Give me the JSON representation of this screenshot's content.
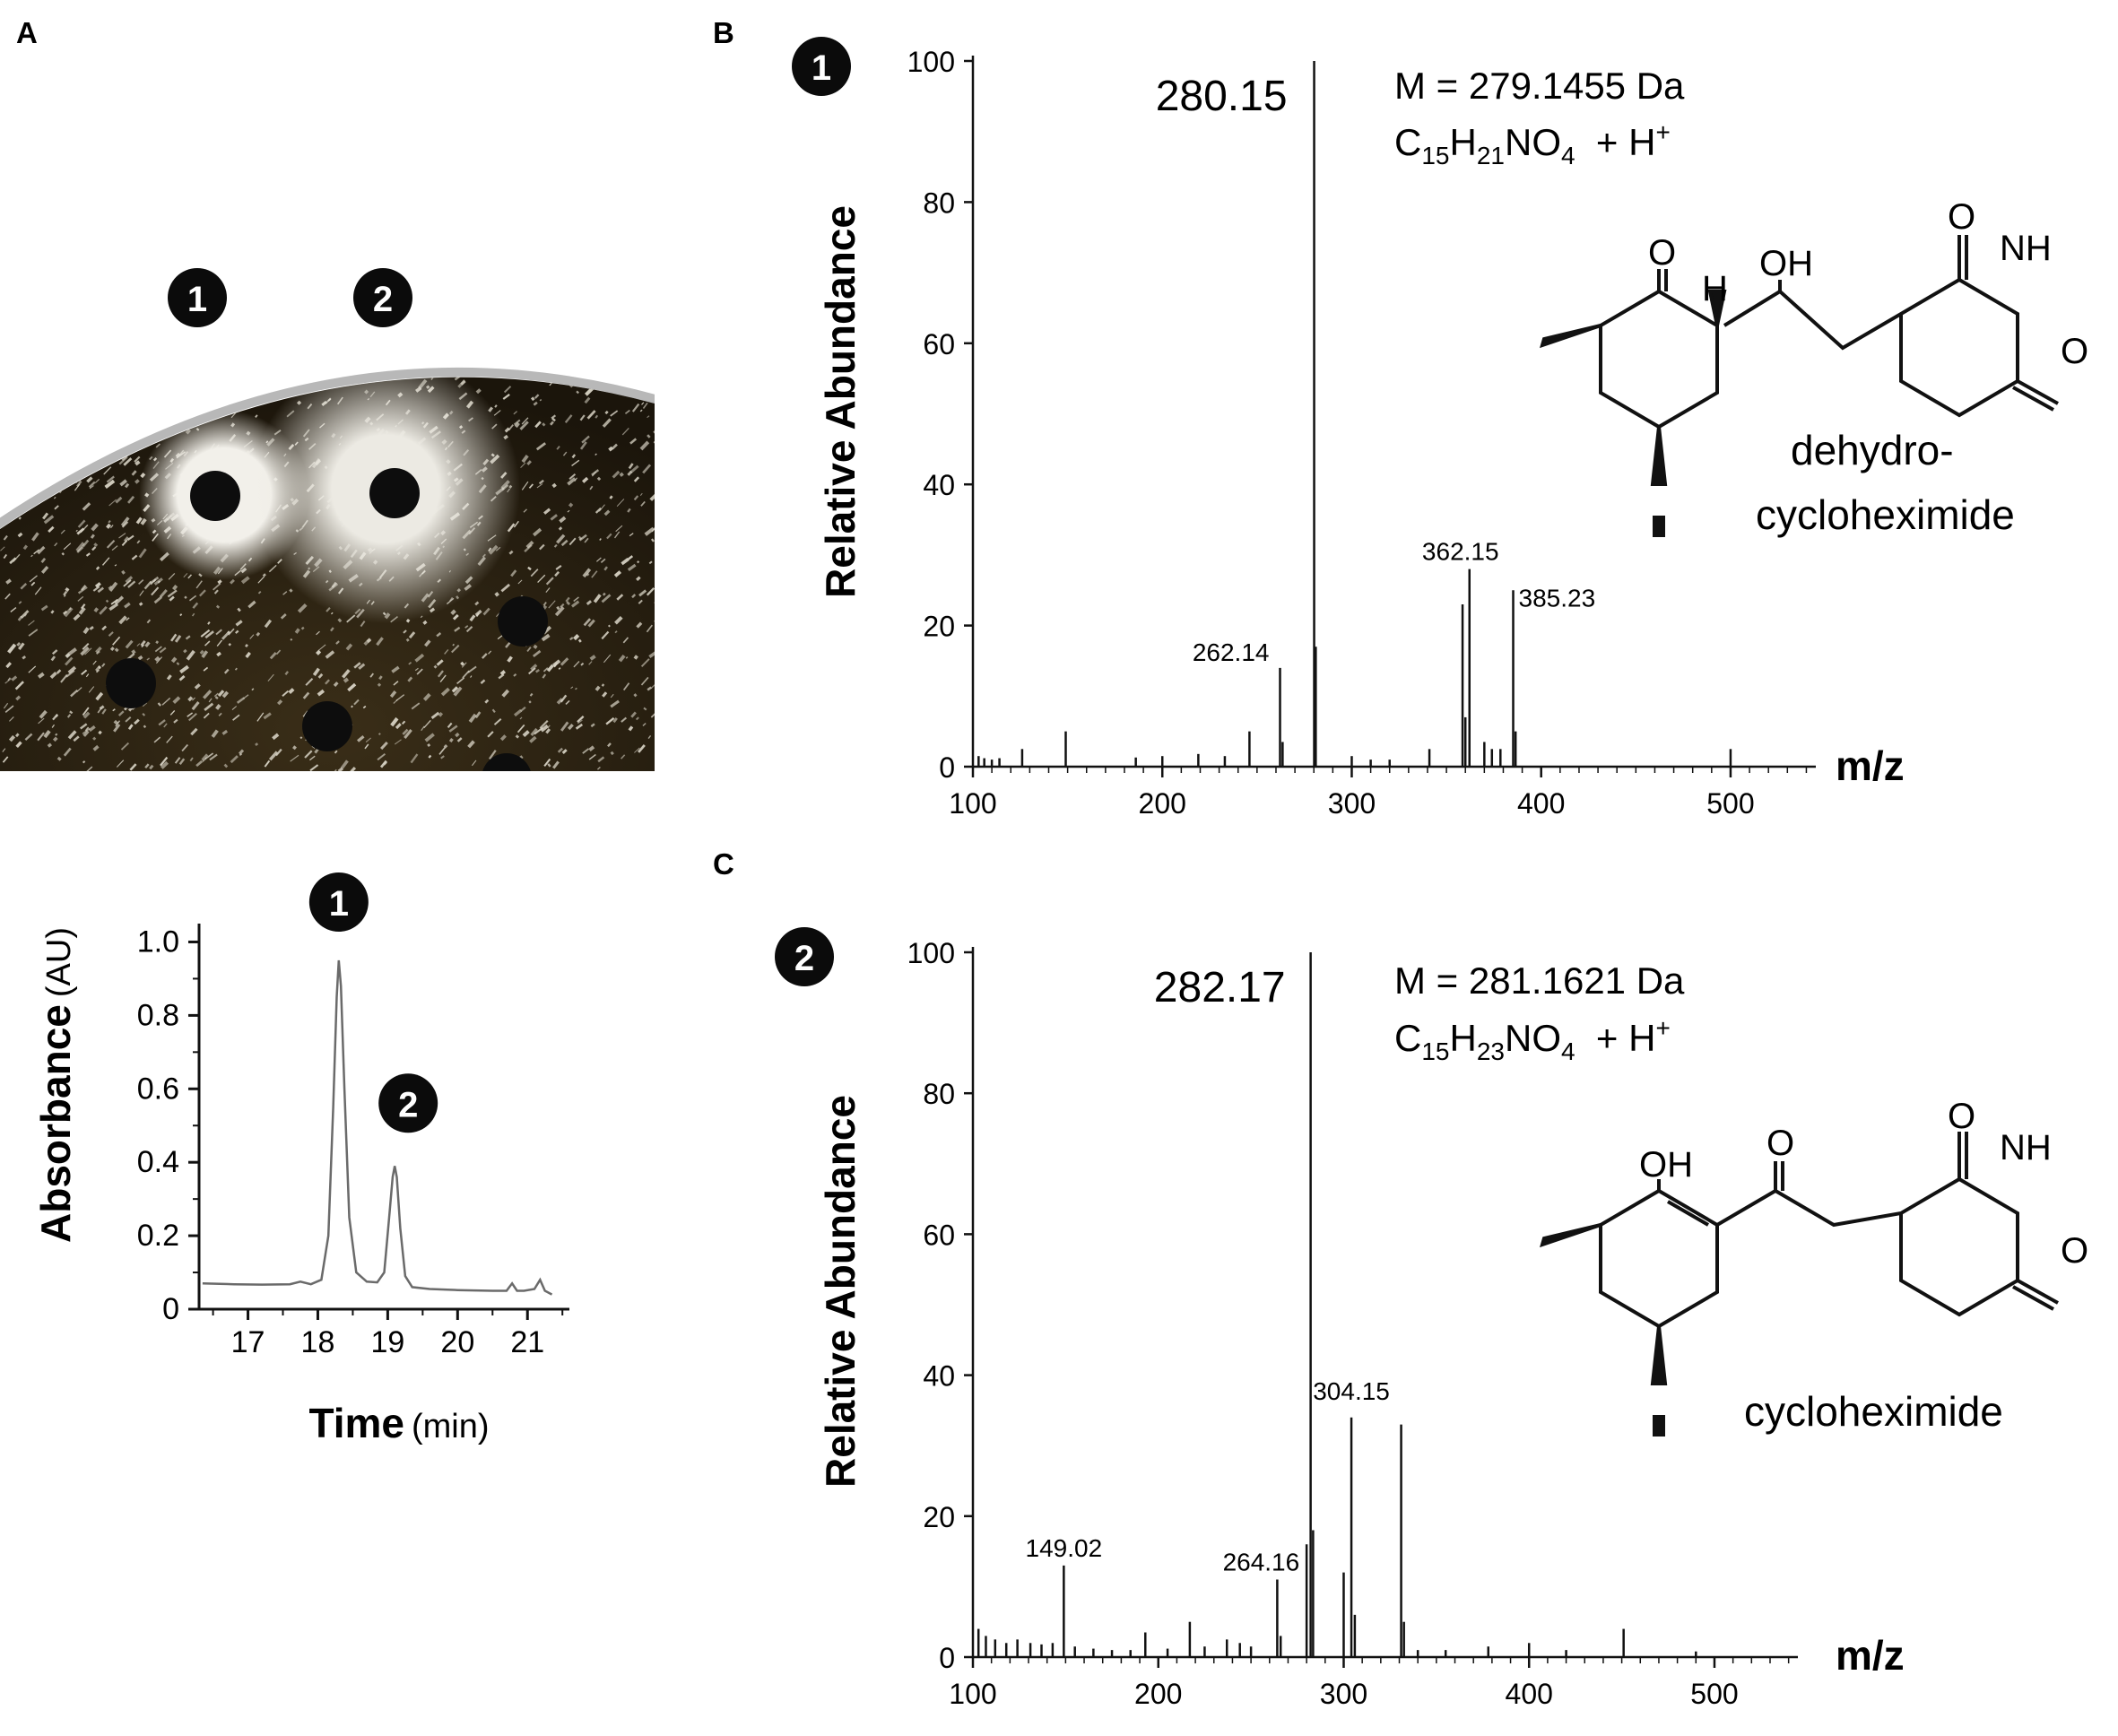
{
  "panels": {
    "a": "A",
    "b": "B",
    "c": "C"
  },
  "plate": {
    "badge_1": "1",
    "badge_2": "2"
  },
  "chromatogram": {
    "badge_1": "1",
    "badge_2": "2",
    "xlabel": "Time",
    "xunit": "(min)",
    "ylabel": "Absorbance",
    "yunit": "(AU)"
  },
  "spectrum_b": {
    "badge": "1",
    "ylabel": "Relative Abundance",
    "xlabel": "m/z",
    "mass_line": "M = 279.1455 Da",
    "formula_parts": [
      "C",
      "15",
      "H",
      "21",
      "NO",
      "4",
      "  + H",
      "+"
    ],
    "compound_line1": "dehydro-",
    "compound_line2": "cycloheximide",
    "atoms": {
      "o_ring": "O",
      "h": "H",
      "oh": "OH",
      "o_top": "O",
      "nh": "NH",
      "o_right": "O"
    }
  },
  "spectrum_c": {
    "badge": "2",
    "ylabel": "Relative Abundance",
    "xlabel": "m/z",
    "mass_line": "M = 281.1621 Da",
    "formula_parts": [
      "C",
      "15",
      "H",
      "23",
      "NO",
      "4",
      "  + H",
      "+"
    ],
    "compound": "cycloheximide",
    "atoms": {
      "oh": "OH",
      "o_ketone": "O",
      "o_top": "O",
      "nh": "NH",
      "o_right": "O"
    }
  },
  "chart_data": [
    {
      "type": "line",
      "xlabel": "Time (min)",
      "ylabel": "Absorbance (AU)",
      "xlim": [
        16.3,
        21.6
      ],
      "ylim": [
        0,
        1.05
      ],
      "xticks": [
        "17",
        "18",
        "19",
        "20",
        "21"
      ],
      "yticks": [
        "0",
        "0.2",
        "0.4",
        "0.6",
        "0.8",
        "1.0"
      ],
      "series": [
        {
          "x": [
            16.35,
            16.8,
            17.2,
            17.6,
            17.75,
            17.9,
            18.05,
            18.15,
            18.22,
            18.27,
            18.3,
            18.33,
            18.38,
            18.45,
            18.55,
            18.7,
            18.85,
            18.95,
            19.02,
            19.07,
            19.1,
            19.13,
            19.18,
            19.25,
            19.35,
            19.6,
            20.0,
            20.5,
            20.7,
            20.78,
            20.85,
            20.95,
            21.1,
            21.18,
            21.25,
            21.35
          ],
          "y": [
            0.07,
            0.068,
            0.067,
            0.068,
            0.075,
            0.068,
            0.08,
            0.2,
            0.55,
            0.85,
            0.95,
            0.88,
            0.6,
            0.25,
            0.1,
            0.075,
            0.073,
            0.1,
            0.25,
            0.36,
            0.39,
            0.36,
            0.22,
            0.09,
            0.06,
            0.055,
            0.052,
            0.05,
            0.05,
            0.07,
            0.05,
            0.05,
            0.055,
            0.08,
            0.05,
            0.04
          ]
        }
      ],
      "annotations": [
        {
          "label": "1",
          "x": 18.3,
          "y": 0.95
        },
        {
          "label": "2",
          "x": 19.1,
          "y": 0.39
        }
      ]
    },
    {
      "type": "bar",
      "title": "",
      "xlabel": "m/z",
      "ylabel": "Relative Abundance",
      "xlim": [
        100,
        545
      ],
      "ylim": [
        0,
        100
      ],
      "xticks": [
        "100",
        "200",
        "300",
        "400",
        "500"
      ],
      "yticks": [
        "0",
        "20",
        "40",
        "60",
        "80",
        "100"
      ],
      "peaks": [
        {
          "mz": 280.15,
          "value": 100,
          "label": "280.15"
        },
        {
          "mz": 262.14,
          "value": 14,
          "label": "262.14"
        },
        {
          "mz": 362.15,
          "value": 28,
          "label": "362.15"
        },
        {
          "mz": 385.23,
          "value": 25,
          "label": "385.23"
        },
        {
          "mz": 281.0,
          "value": 17
        },
        {
          "mz": 358.5,
          "value": 23
        },
        {
          "mz": 263.5,
          "value": 3.5
        },
        {
          "mz": 246.0,
          "value": 5
        },
        {
          "mz": 386.5,
          "value": 5
        },
        {
          "mz": 360.0,
          "value": 7
        },
        {
          "mz": 370.0,
          "value": 3.5
        },
        {
          "mz": 374.0,
          "value": 2.5
        },
        {
          "mz": 378.5,
          "value": 2.5
        },
        {
          "mz": 341.0,
          "value": 2.5
        },
        {
          "mz": 149.0,
          "value": 5
        },
        {
          "mz": 126.0,
          "value": 2.5
        },
        {
          "mz": 500.0,
          "value": 2.5
        },
        {
          "mz": 200.0,
          "value": 1.5
        },
        {
          "mz": 186.0,
          "value": 1.3
        },
        {
          "mz": 219.0,
          "value": 1.8
        },
        {
          "mz": 233.0,
          "value": 1.5
        },
        {
          "mz": 103.0,
          "value": 1.5
        },
        {
          "mz": 106.0,
          "value": 1.2
        },
        {
          "mz": 110.0,
          "value": 1.0
        },
        {
          "mz": 114.0,
          "value": 1.2
        },
        {
          "mz": 300.0,
          "value": 1.5
        },
        {
          "mz": 310.0,
          "value": 1.0
        },
        {
          "mz": 320.0,
          "value": 1.0
        }
      ]
    },
    {
      "type": "bar",
      "title": "",
      "xlabel": "m/z",
      "ylabel": "Relative Abundance",
      "xlim": [
        100,
        545
      ],
      "ylim": [
        0,
        100
      ],
      "xticks": [
        "100",
        "200",
        "300",
        "400",
        "500"
      ],
      "yticks": [
        "0",
        "20",
        "40",
        "60",
        "80",
        "100"
      ],
      "peaks": [
        {
          "mz": 282.17,
          "value": 100,
          "label": "282.17"
        },
        {
          "mz": 149.02,
          "value": 13,
          "label": "149.02"
        },
        {
          "mz": 264.16,
          "value": 11,
          "label": "264.16"
        },
        {
          "mz": 304.15,
          "value": 34,
          "label": "304.15"
        },
        {
          "mz": 331.0,
          "value": 33
        },
        {
          "mz": 280.0,
          "value": 16
        },
        {
          "mz": 283.5,
          "value": 18
        },
        {
          "mz": 300.0,
          "value": 12
        },
        {
          "mz": 306.0,
          "value": 6
        },
        {
          "mz": 332.5,
          "value": 5
        },
        {
          "mz": 217.0,
          "value": 5
        },
        {
          "mz": 193.0,
          "value": 3.5
        },
        {
          "mz": 451.0,
          "value": 4
        },
        {
          "mz": 400.0,
          "value": 2
        },
        {
          "mz": 378.0,
          "value": 1.5
        },
        {
          "mz": 266.0,
          "value": 3
        },
        {
          "mz": 237.0,
          "value": 2.5
        },
        {
          "mz": 244.0,
          "value": 2
        },
        {
          "mz": 103.0,
          "value": 4
        },
        {
          "mz": 107.0,
          "value": 3
        },
        {
          "mz": 112.0,
          "value": 2.5
        },
        {
          "mz": 118.0,
          "value": 2
        },
        {
          "mz": 124.0,
          "value": 2.5
        },
        {
          "mz": 131.0,
          "value": 2
        },
        {
          "mz": 137.0,
          "value": 1.8
        },
        {
          "mz": 143.0,
          "value": 2
        },
        {
          "mz": 155.0,
          "value": 1.5
        },
        {
          "mz": 165.0,
          "value": 1.2
        },
        {
          "mz": 175.0,
          "value": 1.0
        },
        {
          "mz": 185.0,
          "value": 1.0
        },
        {
          "mz": 205.0,
          "value": 1.2
        },
        {
          "mz": 225.0,
          "value": 1.5
        },
        {
          "mz": 250.0,
          "value": 1.5
        },
        {
          "mz": 340.0,
          "value": 1.0
        },
        {
          "mz": 355.0,
          "value": 1.0
        },
        {
          "mz": 420.0,
          "value": 1.0
        },
        {
          "mz": 490.0,
          "value": 0.8
        }
      ]
    }
  ]
}
